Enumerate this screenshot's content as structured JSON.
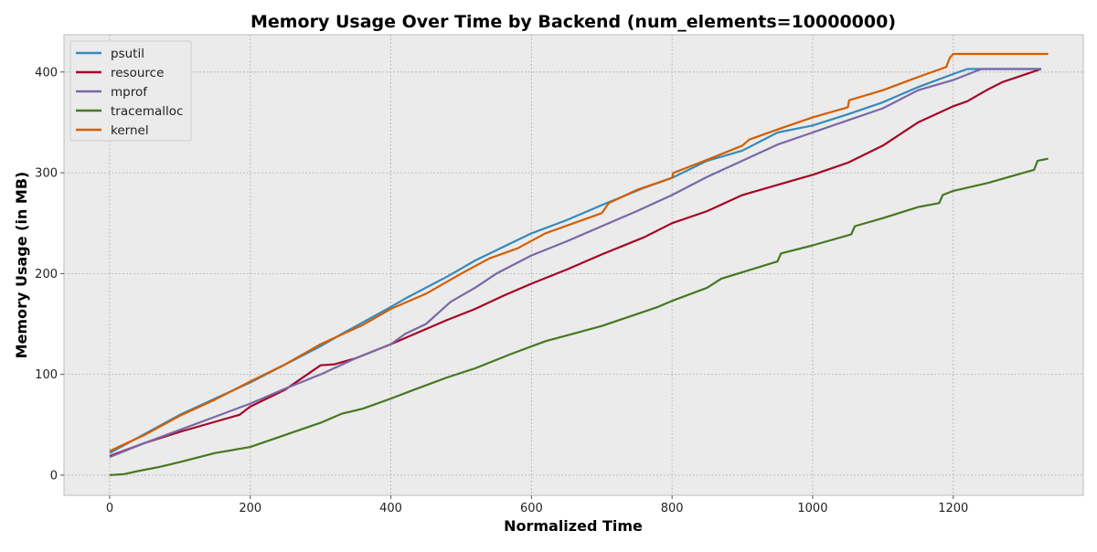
{
  "chart_data": {
    "type": "line",
    "title": "Memory Usage Over Time by Backend (num_elements=10000000)",
    "xlabel": "Normalized Time",
    "ylabel": "Memory Usage (in MB)",
    "xlim": [
      -65,
      1385
    ],
    "ylim": [
      -20,
      437
    ],
    "xticks": [
      0,
      200,
      400,
      600,
      800,
      1000,
      1200
    ],
    "yticks": [
      0,
      100,
      200,
      300,
      400
    ],
    "grid": true,
    "legend_position": "top-left",
    "background": "#ebebeb",
    "series": [
      {
        "name": "psutil",
        "color": "#348abd",
        "points": [
          [
            0,
            22
          ],
          [
            100,
            60
          ],
          [
            200,
            92
          ],
          [
            300,
            128
          ],
          [
            330,
            140
          ],
          [
            400,
            167
          ],
          [
            420,
            175
          ],
          [
            480,
            197
          ],
          [
            520,
            213
          ],
          [
            600,
            240
          ],
          [
            650,
            253
          ],
          [
            700,
            268
          ],
          [
            760,
            285
          ],
          [
            800,
            295
          ],
          [
            850,
            312
          ],
          [
            900,
            322
          ],
          [
            950,
            340
          ],
          [
            1000,
            347
          ],
          [
            1050,
            358
          ],
          [
            1100,
            370
          ],
          [
            1150,
            385
          ],
          [
            1200,
            398
          ],
          [
            1220,
            403
          ],
          [
            1325,
            403
          ]
        ]
      },
      {
        "name": "resource",
        "color": "#a60628",
        "points": [
          [
            0,
            19
          ],
          [
            50,
            32
          ],
          [
            100,
            43
          ],
          [
            150,
            53
          ],
          [
            185,
            60
          ],
          [
            200,
            68
          ],
          [
            250,
            85
          ],
          [
            300,
            109
          ],
          [
            320,
            110
          ],
          [
            350,
            116
          ],
          [
            400,
            130
          ],
          [
            420,
            136
          ],
          [
            480,
            154
          ],
          [
            520,
            165
          ],
          [
            560,
            178
          ],
          [
            600,
            190
          ],
          [
            650,
            204
          ],
          [
            700,
            219
          ],
          [
            760,
            236
          ],
          [
            800,
            250
          ],
          [
            850,
            262
          ],
          [
            900,
            278
          ],
          [
            950,
            288
          ],
          [
            1000,
            298
          ],
          [
            1050,
            310
          ],
          [
            1100,
            327
          ],
          [
            1150,
            350
          ],
          [
            1200,
            366
          ],
          [
            1220,
            371
          ],
          [
            1250,
            383
          ],
          [
            1270,
            390
          ],
          [
            1300,
            397
          ],
          [
            1325,
            403
          ]
        ]
      },
      {
        "name": "mprof",
        "color": "#7a68a6",
        "points": [
          [
            0,
            18
          ],
          [
            50,
            32
          ],
          [
            100,
            45
          ],
          [
            150,
            58
          ],
          [
            200,
            71
          ],
          [
            250,
            86
          ],
          [
            300,
            100
          ],
          [
            350,
            116
          ],
          [
            400,
            130
          ],
          [
            420,
            140
          ],
          [
            450,
            150
          ],
          [
            485,
            172
          ],
          [
            520,
            186
          ],
          [
            550,
            200
          ],
          [
            600,
            218
          ],
          [
            650,
            232
          ],
          [
            700,
            247
          ],
          [
            750,
            262
          ],
          [
            800,
            278
          ],
          [
            850,
            296
          ],
          [
            900,
            312
          ],
          [
            950,
            328
          ],
          [
            1000,
            340
          ],
          [
            1050,
            352
          ],
          [
            1100,
            364
          ],
          [
            1150,
            382
          ],
          [
            1200,
            392
          ],
          [
            1240,
            403
          ],
          [
            1325,
            403
          ]
        ]
      },
      {
        "name": "tracemalloc",
        "color": "#467821",
        "points": [
          [
            0,
            0
          ],
          [
            20,
            1
          ],
          [
            40,
            4
          ],
          [
            70,
            8
          ],
          [
            100,
            13
          ],
          [
            150,
            22
          ],
          [
            200,
            28
          ],
          [
            250,
            40
          ],
          [
            300,
            52
          ],
          [
            330,
            61
          ],
          [
            360,
            66
          ],
          [
            400,
            76
          ],
          [
            430,
            84
          ],
          [
            480,
            97
          ],
          [
            520,
            106
          ],
          [
            570,
            120
          ],
          [
            620,
            133
          ],
          [
            700,
            148
          ],
          [
            780,
            167
          ],
          [
            800,
            173
          ],
          [
            850,
            186
          ],
          [
            870,
            195
          ],
          [
            950,
            212
          ],
          [
            955,
            220
          ],
          [
            1000,
            228
          ],
          [
            1055,
            239
          ],
          [
            1060,
            247
          ],
          [
            1100,
            255
          ],
          [
            1150,
            266
          ],
          [
            1180,
            270
          ],
          [
            1185,
            278
          ],
          [
            1200,
            282
          ],
          [
            1250,
            290
          ],
          [
            1300,
            300
          ],
          [
            1315,
            303
          ],
          [
            1320,
            312
          ],
          [
            1335,
            314
          ]
        ]
      },
      {
        "name": "kernel",
        "color": "#d55e00",
        "points": [
          [
            0,
            24
          ],
          [
            50,
            40
          ],
          [
            100,
            59
          ],
          [
            150,
            75
          ],
          [
            200,
            93
          ],
          [
            250,
            110
          ],
          [
            300,
            130
          ],
          [
            360,
            149
          ],
          [
            400,
            165
          ],
          [
            450,
            180
          ],
          [
            480,
            192
          ],
          [
            500,
            200
          ],
          [
            540,
            215
          ],
          [
            580,
            225
          ],
          [
            620,
            240
          ],
          [
            700,
            260
          ],
          [
            710,
            270
          ],
          [
            750,
            283
          ],
          [
            800,
            295
          ],
          [
            802,
            300
          ],
          [
            850,
            313
          ],
          [
            900,
            327
          ],
          [
            910,
            333
          ],
          [
            950,
            343
          ],
          [
            1000,
            355
          ],
          [
            1050,
            365
          ],
          [
            1052,
            372
          ],
          [
            1100,
            382
          ],
          [
            1150,
            395
          ],
          [
            1190,
            405
          ],
          [
            1195,
            414
          ],
          [
            1200,
            418
          ],
          [
            1335,
            418
          ]
        ]
      }
    ]
  }
}
